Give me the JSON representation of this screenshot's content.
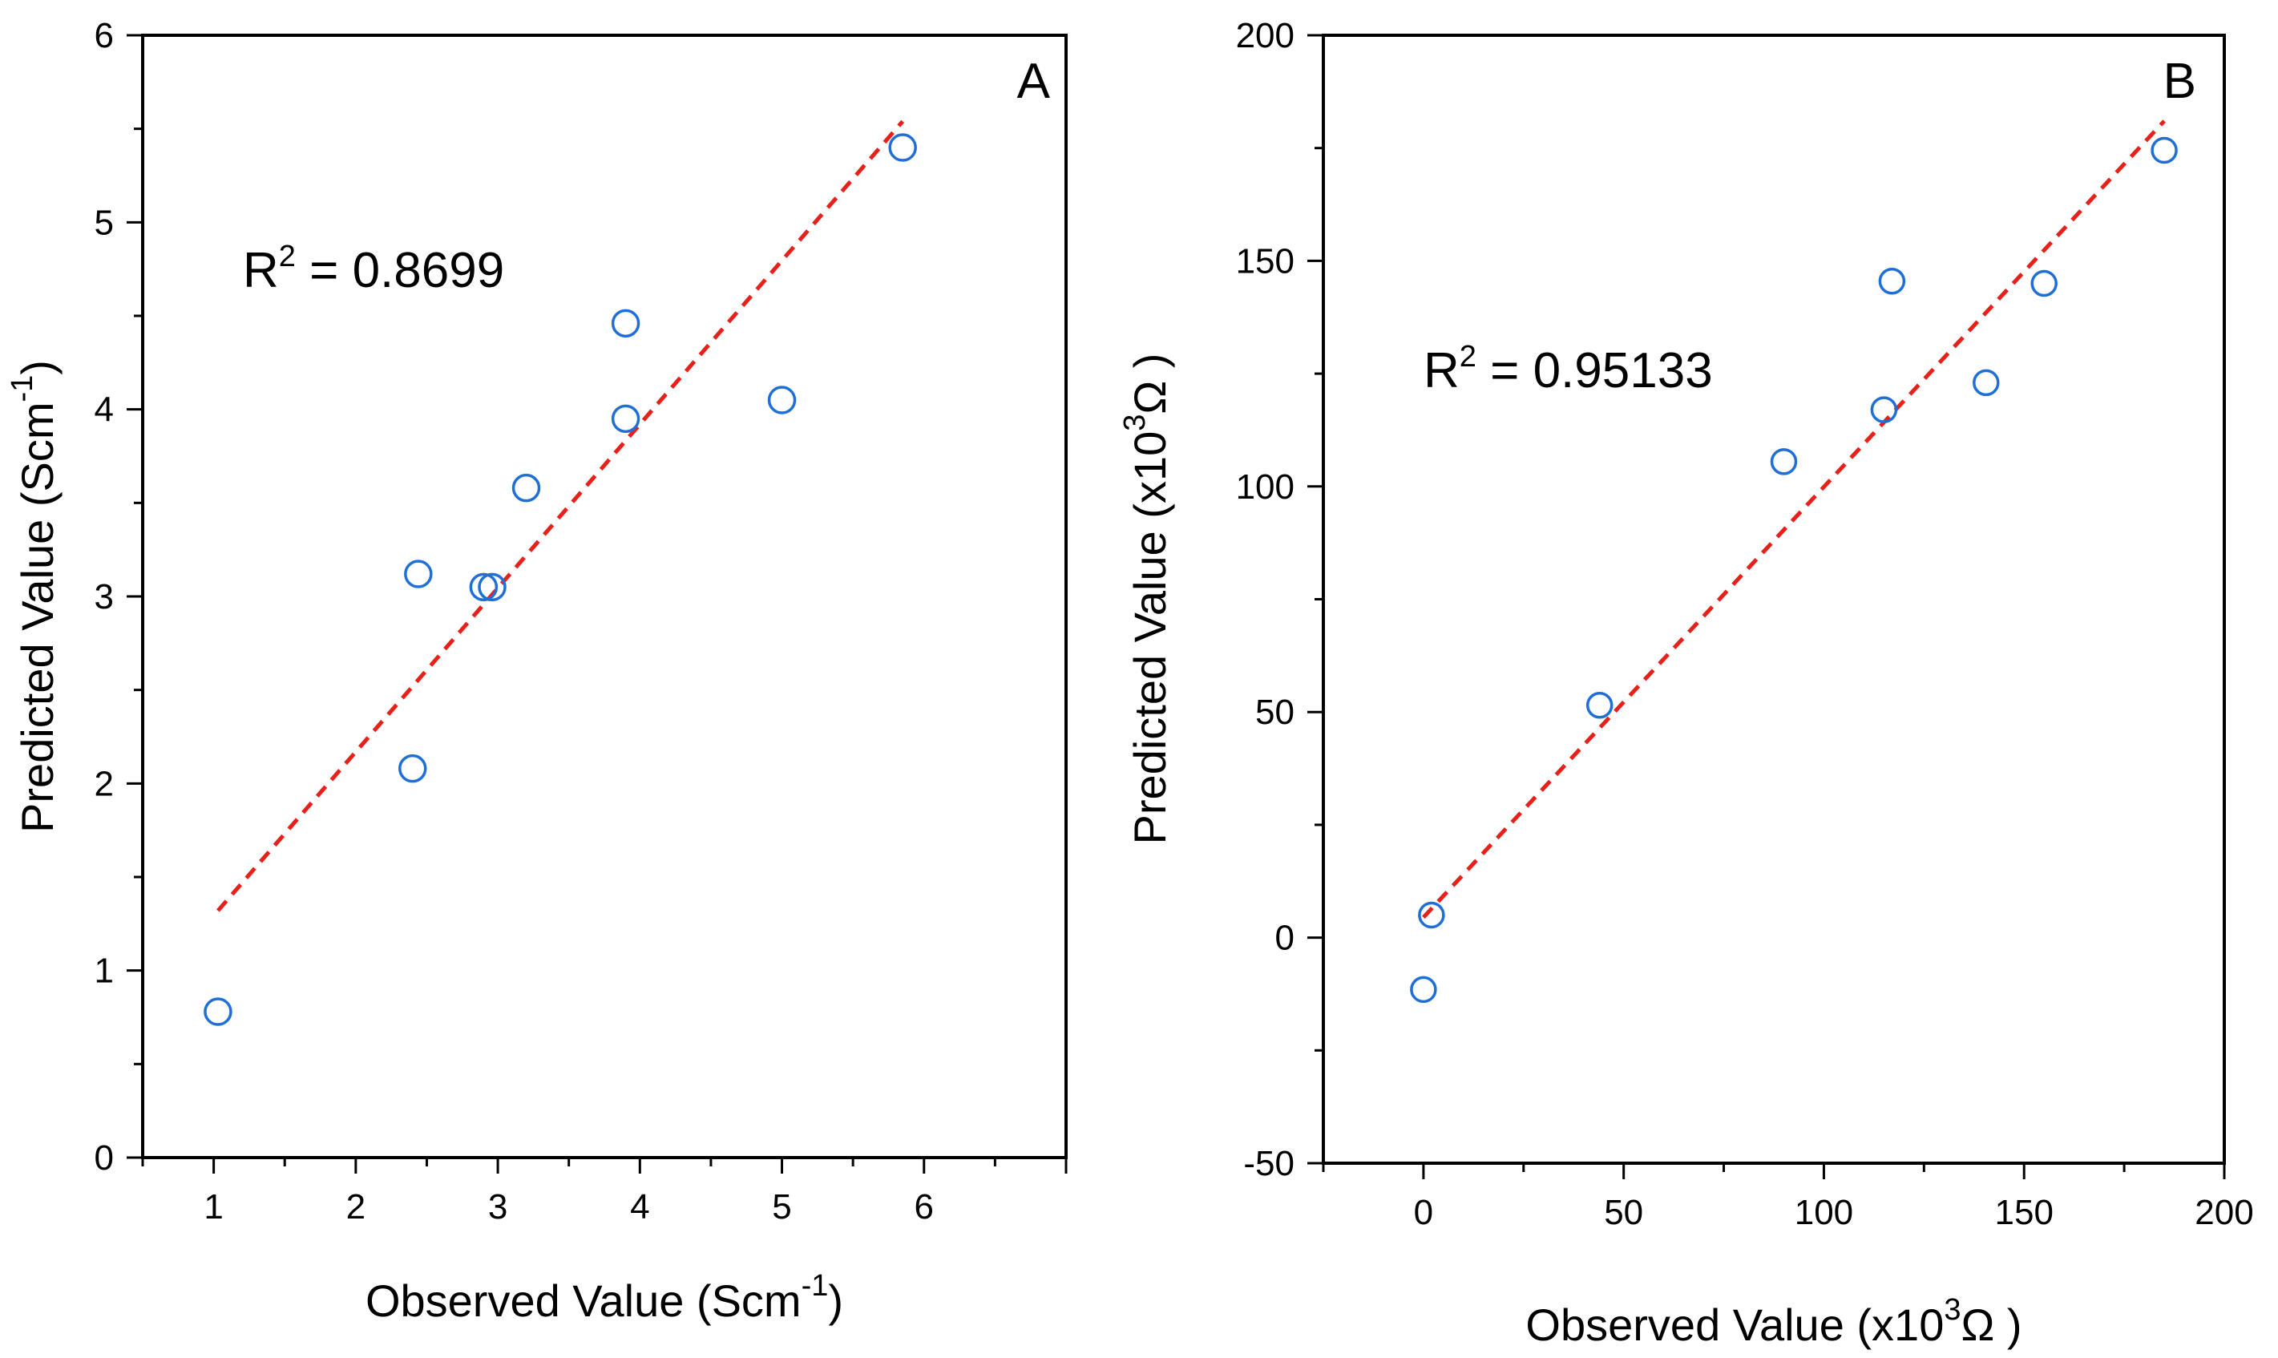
{
  "chart_data": [
    {
      "type": "scatter",
      "panel_label": "A",
      "xlabel": "Observed Value (Scm-1)",
      "xlabel_parts": {
        "before": "Observed Value (Scm",
        "sup": "-1",
        "after": ")"
      },
      "ylabel": "Predicted Value (Scm-1)",
      "ylabel_parts": {
        "before": "Predicted Value (Scm",
        "sup": "-1",
        "after": ")"
      },
      "annotation": "R2 = 0.8699",
      "annotation_parts": {
        "before": "R",
        "sup": "2",
        "after": " = 0.8699"
      },
      "xlim": [
        0.5,
        7.0
      ],
      "ylim": [
        0,
        6
      ],
      "xticks": [
        1,
        2,
        3,
        4,
        5,
        6
      ],
      "yticks": [
        0,
        1,
        2,
        3,
        4,
        5,
        6
      ],
      "points": [
        {
          "x": 1.03,
          "y": 0.78
        },
        {
          "x": 2.4,
          "y": 2.08
        },
        {
          "x": 2.44,
          "y": 3.12
        },
        {
          "x": 2.9,
          "y": 3.05
        },
        {
          "x": 2.96,
          "y": 3.05
        },
        {
          "x": 3.2,
          "y": 3.58
        },
        {
          "x": 3.9,
          "y": 3.95
        },
        {
          "x": 3.9,
          "y": 4.46
        },
        {
          "x": 5.0,
          "y": 4.05
        },
        {
          "x": 5.85,
          "y": 5.4
        }
      ],
      "fit_line": {
        "x": [
          1.03,
          5.85
        ],
        "y": [
          1.32,
          5.54
        ]
      },
      "point_color": "#1f6fd6",
      "fit_color": "#e8201a"
    },
    {
      "type": "scatter",
      "panel_label": "B",
      "xlabel": "Observed Value (x103Ω )",
      "xlabel_parts": {
        "before": "Observed Value (x10",
        "sup": "3",
        "after": "Ω )"
      },
      "ylabel": "Predicted Value (x103Ω )",
      "ylabel_parts": {
        "before": "Predicted Value (x10",
        "sup": "3",
        "after": "Ω )"
      },
      "annotation": "R2 = 0.95133",
      "annotation_parts": {
        "before": "R",
        "sup": "2",
        "after": " = 0.95133"
      },
      "xlim": [
        -25,
        200
      ],
      "ylim": [
        -50,
        200
      ],
      "xticks": [
        0,
        50,
        100,
        150,
        200
      ],
      "yticks": [
        -50,
        0,
        50,
        100,
        150,
        200
      ],
      "points": [
        {
          "x": 0,
          "y": -11.5
        },
        {
          "x": 2,
          "y": 5
        },
        {
          "x": 44,
          "y": 51.5
        },
        {
          "x": 90,
          "y": 105.5
        },
        {
          "x": 115,
          "y": 117
        },
        {
          "x": 117,
          "y": 145.5
        },
        {
          "x": 140.5,
          "y": 123
        },
        {
          "x": 155,
          "y": 145
        },
        {
          "x": 185,
          "y": 174.5
        }
      ],
      "fit_line": {
        "x": [
          0,
          185
        ],
        "y": [
          4.5,
          181
        ]
      },
      "point_color": "#1f6fd6",
      "fit_color": "#e8201a"
    }
  ]
}
